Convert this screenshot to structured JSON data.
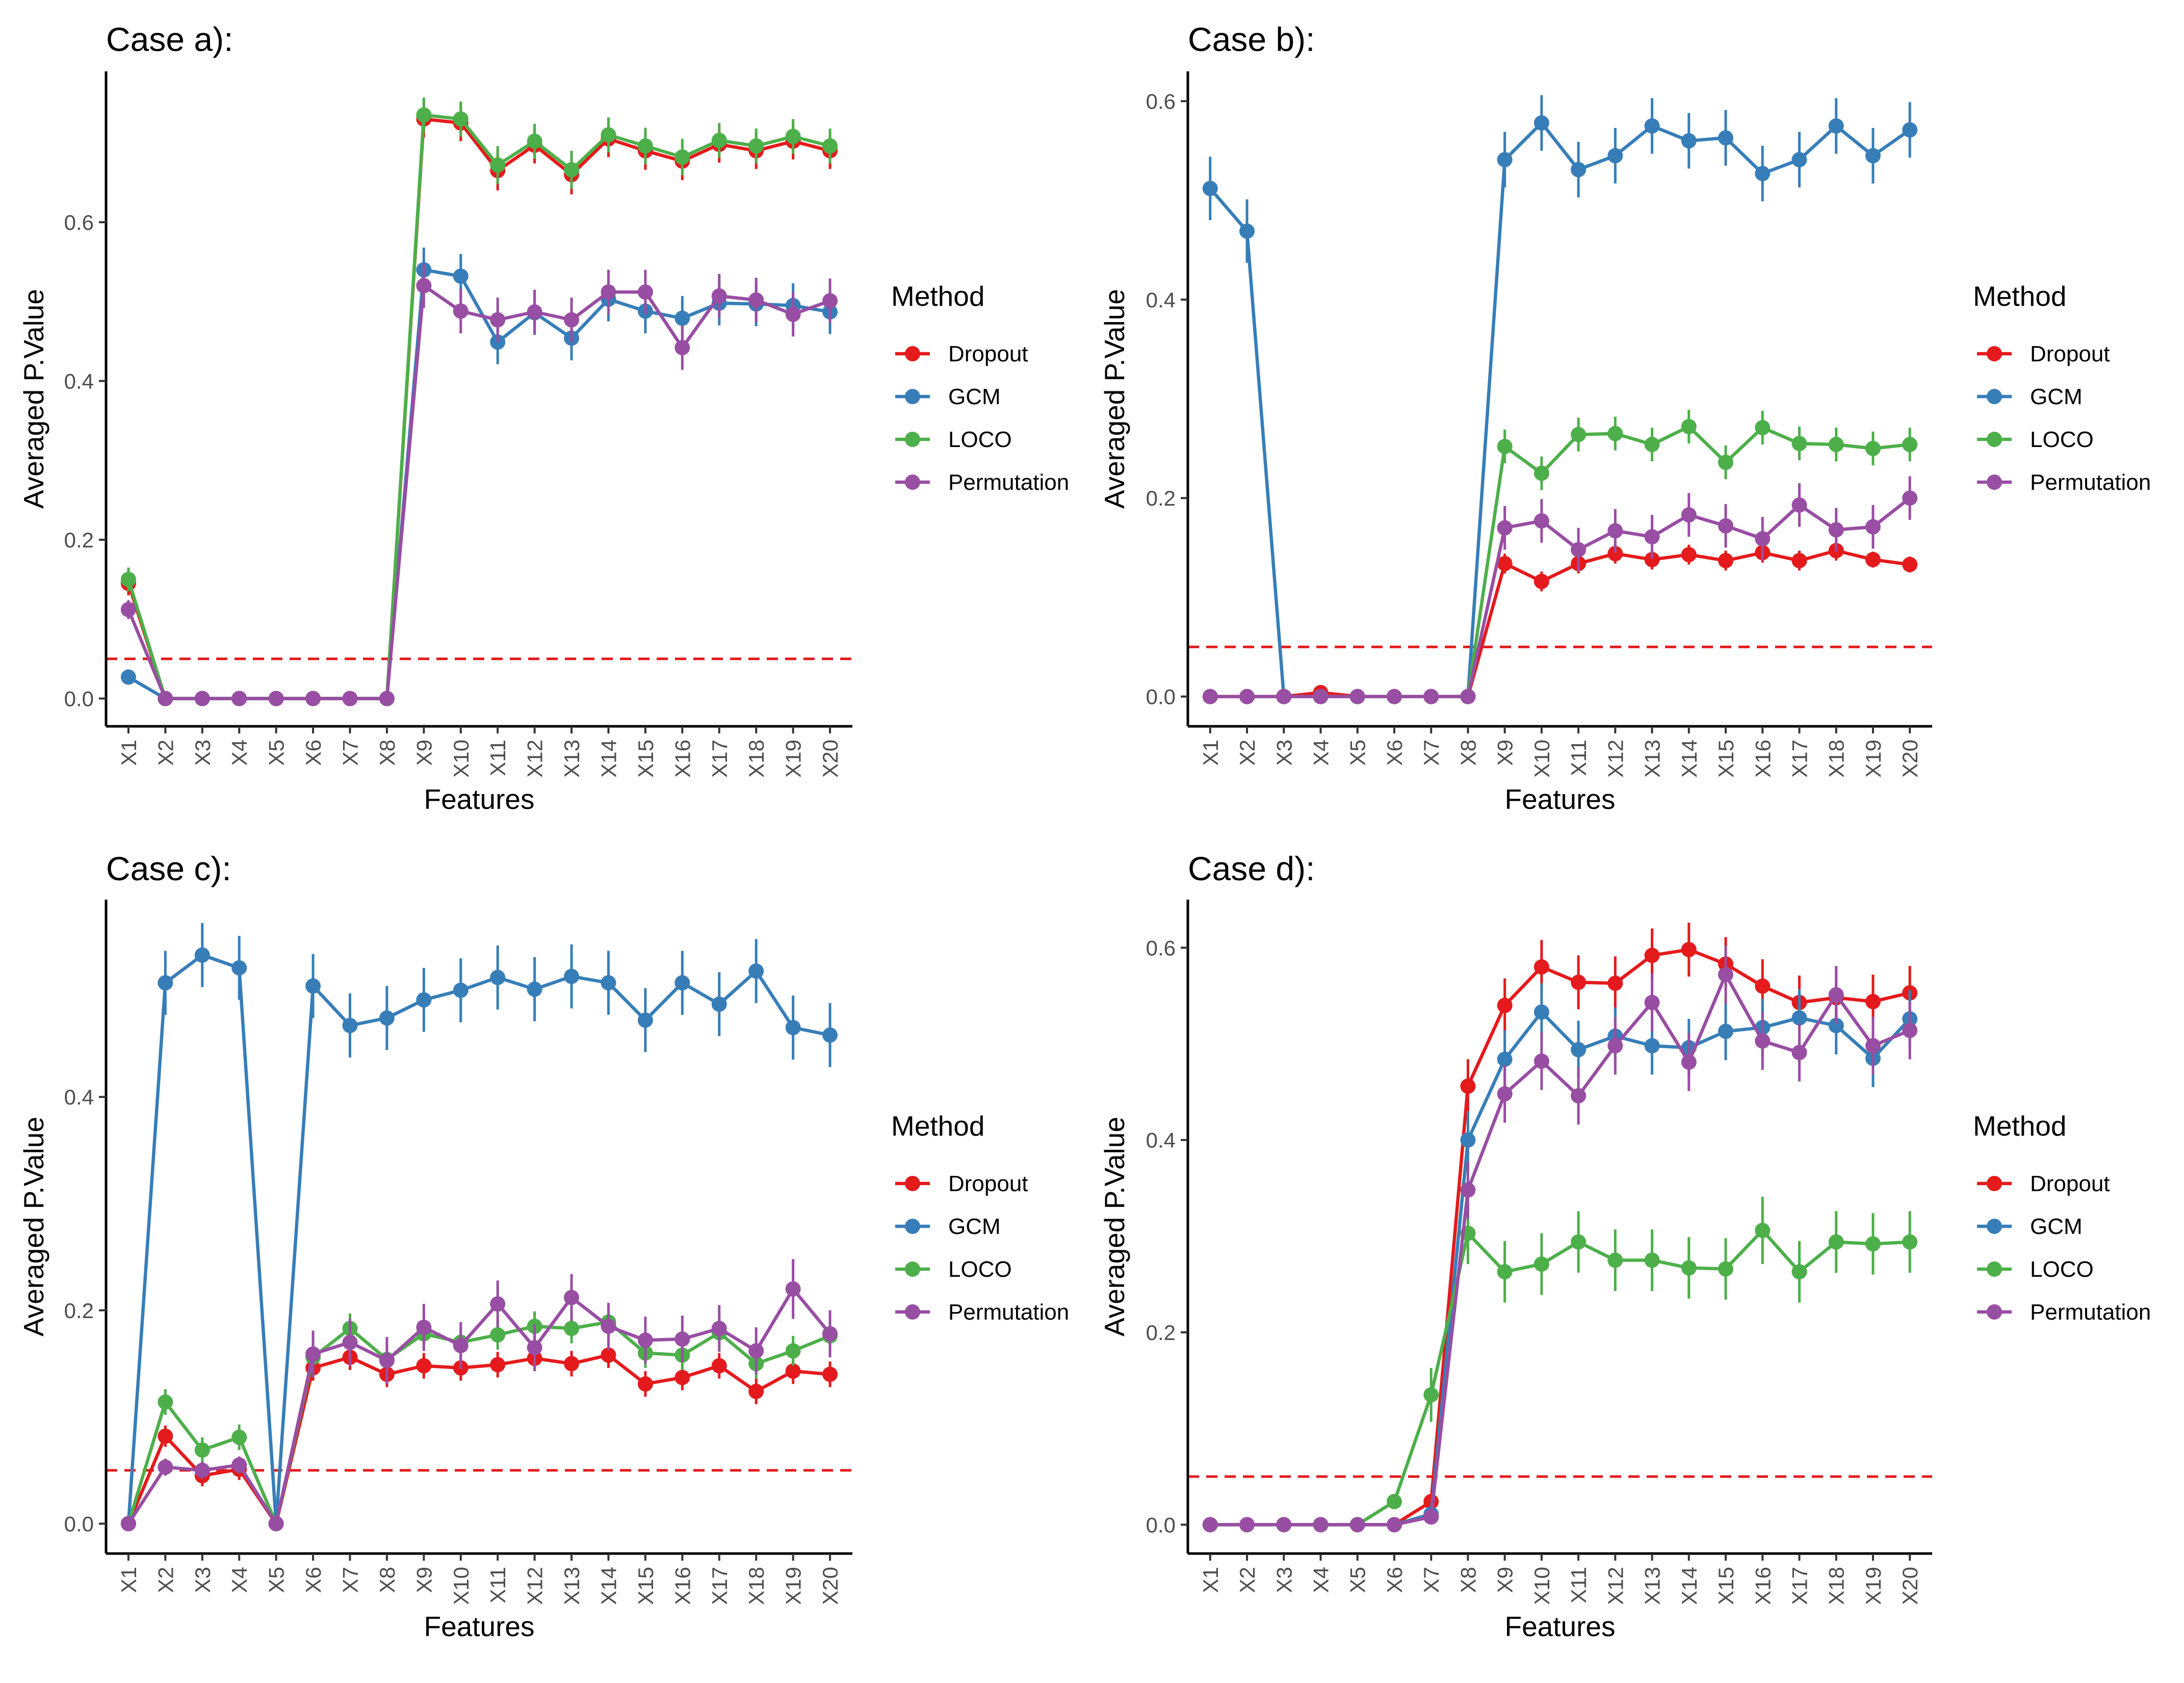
{
  "figure": {
    "legend_title": "Method",
    "threshold": 0.05,
    "threshold_color": "#E41A1C"
  },
  "methods": [
    {
      "name": "Dropout",
      "color": "#E41A1C"
    },
    {
      "name": "GCM",
      "color": "#377EB8"
    },
    {
      "name": "LOCO",
      "color": "#4DAF4A"
    },
    {
      "name": "Permutation",
      "color": "#984EA3"
    }
  ],
  "chart_data": [
    {
      "type": "line",
      "title": "Case a):",
      "xlabel": "Features",
      "ylabel": "Averaged P.Value",
      "ylim": [
        -0.035,
        0.79
      ],
      "yticks": [
        0.0,
        0.2,
        0.4,
        0.6
      ],
      "ytick_labels": [
        "0.0",
        "0.2",
        "0.4",
        "0.6"
      ],
      "categories": [
        "X1",
        "X2",
        "X3",
        "X4",
        "X5",
        "X6",
        "X7",
        "X8",
        "X9",
        "X10",
        "X11",
        "X12",
        "X13",
        "X14",
        "X15",
        "X16",
        "X17",
        "X18",
        "X19",
        "X20"
      ],
      "legend_position": "right",
      "series": [
        {
          "name": "Dropout",
          "values": [
            0.145,
            0,
            0,
            0,
            0,
            0,
            0,
            0,
            0.73,
            0.725,
            0.665,
            0.697,
            0.66,
            0.705,
            0.69,
            0.677,
            0.698,
            0.69,
            0.702,
            0.69
          ],
          "errors": [
            0.015,
            0,
            0,
            0,
            0,
            0,
            0,
            0,
            0.023,
            0.023,
            0.025,
            0.023,
            0.025,
            0.023,
            0.024,
            0.024,
            0.023,
            0.023,
            0.023,
            0.023
          ]
        },
        {
          "name": "GCM",
          "values": [
            0.027,
            0,
            0,
            0,
            0,
            0,
            0,
            0,
            0.54,
            0.532,
            0.449,
            0.486,
            0.454,
            0.503,
            0.488,
            0.479,
            0.498,
            0.497,
            0.495,
            0.487
          ],
          "errors": [
            0.005,
            0,
            0,
            0,
            0,
            0,
            0,
            0,
            0.028,
            0.028,
            0.028,
            0.028,
            0.028,
            0.028,
            0.028,
            0.028,
            0.028,
            0.028,
            0.028,
            0.028
          ]
        },
        {
          "name": "LOCO",
          "values": [
            0.15,
            0,
            0,
            0,
            0,
            0,
            0,
            0,
            0.735,
            0.73,
            0.672,
            0.702,
            0.666,
            0.71,
            0.696,
            0.682,
            0.703,
            0.696,
            0.708,
            0.696
          ],
          "errors": [
            0.015,
            0,
            0,
            0,
            0,
            0,
            0,
            0,
            0.022,
            0.022,
            0.024,
            0.022,
            0.024,
            0.022,
            0.023,
            0.023,
            0.022,
            0.022,
            0.022,
            0.022
          ]
        },
        {
          "name": "Permutation",
          "values": [
            0.112,
            0,
            0,
            0,
            0,
            0,
            0,
            0,
            0.52,
            0.488,
            0.477,
            0.487,
            0.477,
            0.512,
            0.512,
            0.442,
            0.507,
            0.502,
            0.484,
            0.501
          ],
          "errors": [
            0.012,
            0,
            0,
            0,
            0,
            0,
            0,
            0,
            0.028,
            0.028,
            0.028,
            0.028,
            0.028,
            0.028,
            0.028,
            0.028,
            0.028,
            0.028,
            0.028,
            0.028
          ]
        }
      ]
    },
    {
      "type": "line",
      "title": "Case b):",
      "xlabel": "Features",
      "ylabel": "Averaged P.Value",
      "ylim": [
        -0.03,
        0.63
      ],
      "yticks": [
        0.0,
        0.2,
        0.4,
        0.6
      ],
      "ytick_labels": [
        "0.0",
        "0.2",
        "0.4",
        "0.6"
      ],
      "categories": [
        "X1",
        "X2",
        "X3",
        "X4",
        "X5",
        "X6",
        "X7",
        "X8",
        "X9",
        "X10",
        "X11",
        "X12",
        "X13",
        "X14",
        "X15",
        "X16",
        "X17",
        "X18",
        "X19",
        "X20"
      ],
      "legend_position": "right",
      "series": [
        {
          "name": "Dropout",
          "values": [
            0,
            0,
            0,
            0.004,
            0,
            0,
            0,
            0,
            0.134,
            0.116,
            0.134,
            0.144,
            0.138,
            0.143,
            0.137,
            0.145,
            0.137,
            0.147,
            0.138,
            0.133
          ],
          "errors": [
            0,
            0,
            0,
            0.002,
            0,
            0,
            0,
            0,
            0.01,
            0.01,
            0.01,
            0.01,
            0.01,
            0.01,
            0.01,
            0.01,
            0.01,
            0.01,
            0.008,
            0.008
          ]
        },
        {
          "name": "GCM",
          "values": [
            0.512,
            0.469,
            0,
            0,
            0,
            0,
            0,
            0,
            0.541,
            0.578,
            0.531,
            0.545,
            0.575,
            0.56,
            0.563,
            0.527,
            0.541,
            0.575,
            0.545,
            0.571
          ],
          "errors": [
            0.032,
            0.032,
            0,
            0,
            0,
            0,
            0,
            0,
            0.028,
            0.028,
            0.028,
            0.028,
            0.028,
            0.028,
            0.028,
            0.028,
            0.028,
            0.028,
            0.028,
            0.028
          ]
        },
        {
          "name": "LOCO",
          "values": [
            0,
            0,
            0,
            0,
            0,
            0,
            0,
            0,
            0.252,
            0.225,
            0.264,
            0.265,
            0.254,
            0.272,
            0.236,
            0.271,
            0.255,
            0.254,
            0.25,
            0.254
          ],
          "errors": [
            0,
            0,
            0,
            0,
            0,
            0,
            0,
            0,
            0.017,
            0.017,
            0.017,
            0.017,
            0.017,
            0.017,
            0.017,
            0.017,
            0.017,
            0.017,
            0.017,
            0.017
          ]
        },
        {
          "name": "Permutation",
          "values": [
            0,
            0,
            0,
            0,
            0,
            0,
            0,
            0,
            0.17,
            0.177,
            0.148,
            0.167,
            0.161,
            0.183,
            0.172,
            0.159,
            0.193,
            0.168,
            0.171,
            0.2
          ],
          "errors": [
            0,
            0,
            0,
            0,
            0,
            0,
            0,
            0,
            0.022,
            0.022,
            0.022,
            0.022,
            0.022,
            0.022,
            0.022,
            0.022,
            0.022,
            0.022,
            0.022,
            0.022
          ]
        }
      ]
    },
    {
      "type": "line",
      "title": "Case c):",
      "xlabel": "Features",
      "ylabel": "Averaged P.Value",
      "ylim": [
        -0.028,
        0.585
      ],
      "yticks": [
        0.0,
        0.2,
        0.4
      ],
      "ytick_labels": [
        "0.0",
        "0.2",
        "0.4"
      ],
      "categories": [
        "X1",
        "X2",
        "X3",
        "X4",
        "X5",
        "X6",
        "X7",
        "X8",
        "X9",
        "X10",
        "X11",
        "X12",
        "X13",
        "X14",
        "X15",
        "X16",
        "X17",
        "X18",
        "X19",
        "X20"
      ],
      "legend_position": "right",
      "series": [
        {
          "name": "Dropout",
          "values": [
            0,
            0.082,
            0.045,
            0.051,
            0,
            0.146,
            0.156,
            0.14,
            0.148,
            0.146,
            0.149,
            0.155,
            0.15,
            0.158,
            0.131,
            0.137,
            0.148,
            0.124,
            0.143,
            0.14
          ],
          "errors": [
            0,
            0.01,
            0.01,
            0.01,
            0,
            0.012,
            0.012,
            0.012,
            0.012,
            0.012,
            0.012,
            0.012,
            0.012,
            0.012,
            0.012,
            0.012,
            0.012,
            0.012,
            0.012,
            0.012
          ]
        },
        {
          "name": "GCM",
          "values": [
            0,
            0.507,
            0.533,
            0.521,
            0,
            0.504,
            0.467,
            0.474,
            0.491,
            0.5,
            0.512,
            0.501,
            0.513,
            0.507,
            0.472,
            0.507,
            0.487,
            0.518,
            0.465,
            0.458
          ],
          "errors": [
            0,
            0.03,
            0.03,
            0.03,
            0,
            0.03,
            0.03,
            0.03,
            0.03,
            0.03,
            0.03,
            0.03,
            0.03,
            0.03,
            0.03,
            0.03,
            0.03,
            0.03,
            0.03,
            0.03
          ]
        },
        {
          "name": "LOCO",
          "values": [
            0,
            0.114,
            0.069,
            0.081,
            0,
            0.156,
            0.183,
            0.154,
            0.178,
            0.17,
            0.177,
            0.185,
            0.183,
            0.189,
            0.16,
            0.158,
            0.179,
            0.15,
            0.162,
            0.176
          ],
          "errors": [
            0,
            0.012,
            0.012,
            0.012,
            0,
            0.014,
            0.014,
            0.014,
            0.014,
            0.014,
            0.014,
            0.014,
            0.014,
            0.014,
            0.014,
            0.014,
            0.014,
            0.014,
            0.014,
            0.014
          ]
        },
        {
          "name": "Permutation",
          "values": [
            0,
            0.053,
            0.05,
            0.055,
            0,
            0.159,
            0.17,
            0.153,
            0.184,
            0.167,
            0.206,
            0.165,
            0.212,
            0.185,
            0.172,
            0.173,
            0.183,
            0.162,
            0.22,
            0.178
          ],
          "errors": [
            0,
            0.008,
            0.008,
            0.008,
            0,
            0.022,
            0.022,
            0.022,
            0.022,
            0.022,
            0.022,
            0.022,
            0.022,
            0.022,
            0.022,
            0.022,
            0.022,
            0.022,
            0.028,
            0.022
          ]
        }
      ]
    },
    {
      "type": "line",
      "title": "Case d):",
      "xlabel": "Features",
      "ylabel": "Averaged P.Value",
      "ylim": [
        -0.03,
        0.65
      ],
      "yticks": [
        0.0,
        0.2,
        0.4,
        0.6
      ],
      "ytick_labels": [
        "0.0",
        "0.2",
        "0.4",
        "0.6"
      ],
      "categories": [
        "X1",
        "X2",
        "X3",
        "X4",
        "X5",
        "X6",
        "X7",
        "X8",
        "X9",
        "X10",
        "X11",
        "X12",
        "X13",
        "X14",
        "X15",
        "X16",
        "X17",
        "X18",
        "X19",
        "X20"
      ],
      "legend_position": "right",
      "series": [
        {
          "name": "Dropout",
          "values": [
            0,
            0,
            0,
            0,
            0,
            0,
            0.024,
            0.456,
            0.54,
            0.58,
            0.564,
            0.563,
            0.592,
            0.598,
            0.583,
            0.56,
            0.543,
            0.548,
            0.544,
            0.553
          ],
          "errors": [
            0,
            0,
            0,
            0,
            0,
            0,
            0.006,
            0.028,
            0.028,
            0.028,
            0.028,
            0.028,
            0.028,
            0.028,
            0.028,
            0.028,
            0.028,
            0.028,
            0.028,
            0.028
          ]
        },
        {
          "name": "GCM",
          "values": [
            0,
            0,
            0,
            0,
            0,
            0,
            0.011,
            0.4,
            0.484,
            0.533,
            0.494,
            0.508,
            0.498,
            0.496,
            0.513,
            0.517,
            0.527,
            0.519,
            0.485,
            0.526
          ],
          "errors": [
            0,
            0,
            0,
            0,
            0,
            0,
            0.004,
            0.03,
            0.03,
            0.03,
            0.03,
            0.03,
            0.03,
            0.03,
            0.03,
            0.03,
            0.03,
            0.03,
            0.03,
            0.03
          ]
        },
        {
          "name": "LOCO",
          "values": [
            0,
            0,
            0,
            0,
            0,
            0.024,
            0.135,
            0.303,
            0.263,
            0.271,
            0.294,
            0.275,
            0.275,
            0.267,
            0.266,
            0.306,
            0.263,
            0.294,
            0.292,
            0.294
          ],
          "errors": [
            0,
            0,
            0,
            0,
            0,
            0.006,
            0.028,
            0.032,
            0.032,
            0.032,
            0.032,
            0.032,
            0.032,
            0.032,
            0.032,
            0.035,
            0.032,
            0.032,
            0.032,
            0.032
          ]
        },
        {
          "name": "Permutation",
          "values": [
            0,
            0,
            0,
            0,
            0,
            0,
            0.008,
            0.348,
            0.448,
            0.482,
            0.446,
            0.498,
            0.543,
            0.481,
            0.572,
            0.503,
            0.491,
            0.551,
            0.498,
            0.514
          ],
          "errors": [
            0,
            0,
            0,
            0,
            0,
            0,
            0.004,
            0.03,
            0.03,
            0.03,
            0.03,
            0.03,
            0.03,
            0.03,
            0.03,
            0.03,
            0.03,
            0.03,
            0.03,
            0.03
          ]
        }
      ]
    }
  ]
}
